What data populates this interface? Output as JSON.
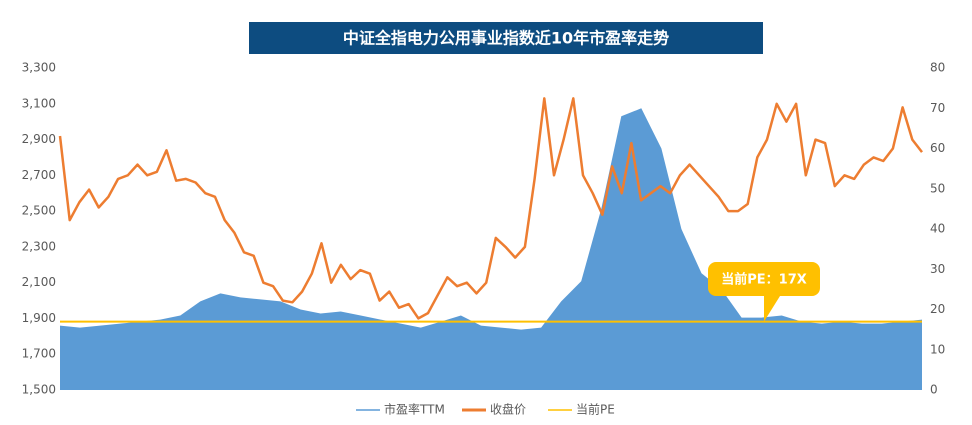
{
  "chart_data": {
    "type": "dual-axis-area-line",
    "title": "中证全指电力公用事业指数近10年市盈率走势",
    "ylim": [
      1500,
      3300
    ],
    "yticks": [
      {
        "value": 1500,
        "label": "1,500"
      },
      {
        "value": 1700,
        "label": "1,700"
      },
      {
        "value": 1900,
        "label": "1,900"
      },
      {
        "value": 2100,
        "label": "2,100"
      },
      {
        "value": 2300,
        "label": "2,300"
      },
      {
        "value": 2500,
        "label": "2,500"
      },
      {
        "value": 2700,
        "label": "2,700"
      },
      {
        "value": 2900,
        "label": "2,900"
      },
      {
        "value": 3100,
        "label": "3,100"
      },
      {
        "value": 3300,
        "label": "3,300"
      }
    ],
    "y2lim": [
      0,
      80
    ],
    "y2ticks": [
      0,
      10,
      20,
      30,
      40,
      50,
      60,
      70,
      80
    ],
    "series": [
      {
        "name": "市盈率TTM",
        "type": "area",
        "axis": "y2",
        "color": "#5b9bd5",
        "values": [
          16,
          15.5,
          16,
          16.5,
          17,
          17.5,
          18.5,
          22,
          24,
          23,
          22.5,
          22,
          20,
          19,
          19.5,
          18.5,
          17.5,
          16.5,
          15.5,
          17,
          18.5,
          16,
          15.5,
          15,
          15.5,
          22,
          27,
          45,
          68,
          70,
          60,
          40,
          29,
          25,
          18,
          18,
          18.5,
          17,
          16.5,
          17,
          16.5,
          16.5,
          17,
          17.5
        ]
      },
      {
        "name": "收盘价",
        "type": "line",
        "color": "#ed7d31",
        "values": [
          2920,
          2450,
          2550,
          2620,
          2520,
          2580,
          2680,
          2700,
          2760,
          2700,
          2720,
          2840,
          2670,
          2680,
          2660,
          2600,
          2580,
          2450,
          2380,
          2270,
          2250,
          2100,
          2080,
          2000,
          1990,
          2050,
          2150,
          2320,
          2100,
          2200,
          2120,
          2170,
          2150,
          2000,
          2050,
          1960,
          1980,
          1900,
          1930,
          2030,
          2130,
          2080,
          2100,
          2040,
          2100,
          2350,
          2300,
          2240,
          2300,
          2680,
          3130,
          2700,
          2900,
          3130,
          2700,
          2600,
          2480,
          2750,
          2600,
          2880,
          2560,
          2600,
          2640,
          2600,
          2700,
          2760,
          2700,
          2640,
          2580,
          2500,
          2500,
          2540,
          2800,
          2900,
          3100,
          3000,
          3100,
          2700,
          2900,
          2880,
          2640,
          2700,
          2680,
          2760,
          2800,
          2780,
          2850,
          3080,
          2900,
          2830
        ]
      },
      {
        "name": "当前PE",
        "type": "hline",
        "axis": "y2",
        "color": "#ffc000",
        "value": 17
      }
    ],
    "annotation": "当前PE：17X"
  }
}
